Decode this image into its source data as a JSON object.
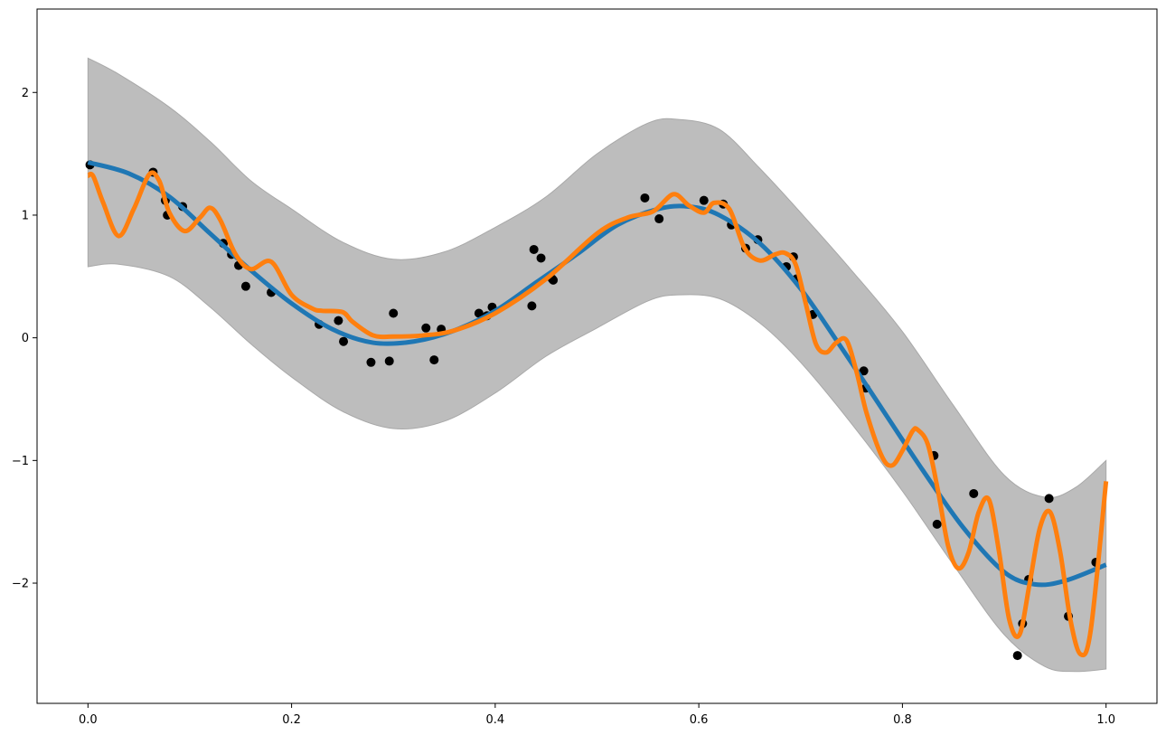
{
  "chart_data": {
    "type": "scatter",
    "title": "",
    "xlabel": "",
    "ylabel": "",
    "xlim": [
      -0.05,
      1.05
    ],
    "ylim": [
      -2.98,
      2.68
    ],
    "x_ticks": [
      0.0,
      0.2,
      0.4,
      0.6,
      0.8,
      1.0
    ],
    "x_tick_labels": [
      "0.0",
      "0.2",
      "0.4",
      "0.6",
      "0.8",
      "1.0"
    ],
    "y_ticks": [
      2,
      1,
      0,
      -1,
      -2
    ],
    "y_tick_labels": [
      "2",
      "1",
      "0",
      "−1",
      "−2"
    ],
    "grid": false,
    "colors": {
      "observations": "#000000",
      "mean": "#1f77b4",
      "wiggly": "#ff7f0e",
      "band_fill": "#bdbdbd",
      "band_edge": "#a8a8a8"
    },
    "band": {
      "x": [
        0.0,
        0.03,
        0.08,
        0.12,
        0.16,
        0.2,
        0.25,
        0.3,
        0.35,
        0.4,
        0.45,
        0.5,
        0.55,
        0.58,
        0.62,
        0.66,
        0.7,
        0.75,
        0.8,
        0.85,
        0.9,
        0.94,
        0.97,
        1.0
      ],
      "upper": [
        2.28,
        2.15,
        1.88,
        1.6,
        1.28,
        1.05,
        0.78,
        0.64,
        0.7,
        0.9,
        1.15,
        1.5,
        1.75,
        1.78,
        1.7,
        1.38,
        1.02,
        0.55,
        0.05,
        -0.55,
        -1.12,
        -1.3,
        -1.22,
        -1.0
      ],
      "lower": [
        0.58,
        0.6,
        0.5,
        0.25,
        -0.05,
        -0.32,
        -0.6,
        -0.74,
        -0.68,
        -0.45,
        -0.15,
        0.08,
        0.3,
        0.35,
        0.32,
        0.12,
        -0.2,
        -0.7,
        -1.25,
        -1.85,
        -2.42,
        -2.68,
        -2.72,
        -2.7
      ]
    },
    "series": [
      {
        "x": [
          0.0,
          0.04,
          0.08,
          0.12,
          0.16,
          0.2,
          0.24,
          0.28,
          0.32,
          0.36,
          0.4,
          0.44,
          0.48,
          0.52,
          0.56,
          0.59,
          0.62,
          0.66,
          0.7,
          0.74,
          0.78,
          0.82,
          0.86,
          0.9,
          0.93,
          0.96,
          1.0
        ],
        "y": [
          1.43,
          1.34,
          1.15,
          0.85,
          0.55,
          0.28,
          0.07,
          -0.04,
          -0.03,
          0.06,
          0.22,
          0.45,
          0.68,
          0.92,
          1.05,
          1.07,
          1.0,
          0.77,
          0.4,
          -0.08,
          -0.58,
          -1.08,
          -1.55,
          -1.91,
          -2.01,
          -1.98,
          -1.85
        ]
      },
      {
        "x": [
          0.0,
          0.005,
          0.015,
          0.03,
          0.045,
          0.06,
          0.07,
          0.08,
          0.095,
          0.11,
          0.12,
          0.13,
          0.145,
          0.16,
          0.18,
          0.2,
          0.22,
          0.23,
          0.25,
          0.26,
          0.28,
          0.3,
          0.33,
          0.36,
          0.4,
          0.45,
          0.5,
          0.53,
          0.555,
          0.575,
          0.59,
          0.605,
          0.615,
          0.63,
          0.645,
          0.66,
          0.675,
          0.685,
          0.695,
          0.705,
          0.715,
          0.725,
          0.735,
          0.745,
          0.755,
          0.765,
          0.78,
          0.79,
          0.8,
          0.81,
          0.815,
          0.825,
          0.835,
          0.845,
          0.855,
          0.865,
          0.875,
          0.885,
          0.895,
          0.905,
          0.915,
          0.925,
          0.935,
          0.945,
          0.955,
          0.965,
          0.975,
          0.985,
          1.0
        ],
        "y": [
          1.32,
          1.32,
          1.1,
          0.83,
          1.05,
          1.33,
          1.28,
          1.02,
          0.87,
          0.98,
          1.06,
          0.96,
          0.68,
          0.56,
          0.62,
          0.35,
          0.24,
          0.22,
          0.21,
          0.13,
          0.02,
          0.01,
          0.02,
          0.06,
          0.2,
          0.48,
          0.85,
          0.98,
          1.03,
          1.17,
          1.08,
          1.02,
          1.1,
          1.05,
          0.73,
          0.63,
          0.68,
          0.69,
          0.6,
          0.28,
          -0.05,
          -0.12,
          -0.04,
          -0.02,
          -0.28,
          -0.62,
          -0.97,
          -1.04,
          -0.92,
          -0.76,
          -0.75,
          -0.87,
          -1.25,
          -1.7,
          -1.88,
          -1.75,
          -1.42,
          -1.32,
          -1.75,
          -2.3,
          -2.42,
          -2.0,
          -1.55,
          -1.42,
          -1.75,
          -2.3,
          -2.58,
          -2.38,
          -1.17
        ]
      }
    ],
    "points": {
      "x": [
        0.002,
        0.064,
        0.076,
        0.078,
        0.093,
        0.133,
        0.141,
        0.148,
        0.155,
        0.18,
        0.227,
        0.246,
        0.251,
        0.278,
        0.296,
        0.3,
        0.332,
        0.34,
        0.347,
        0.384,
        0.392,
        0.397,
        0.436,
        0.438,
        0.445,
        0.456,
        0.457,
        0.547,
        0.561,
        0.605,
        0.624,
        0.632,
        0.646,
        0.658,
        0.686,
        0.693,
        0.696,
        0.712,
        0.762,
        0.764,
        0.831,
        0.834,
        0.87,
        0.913,
        0.918,
        0.924,
        0.944,
        0.963,
        0.99
      ],
      "y": [
        1.41,
        1.35,
        1.12,
        1.0,
        1.07,
        0.77,
        0.68,
        0.59,
        0.42,
        0.37,
        0.11,
        0.14,
        -0.03,
        -0.2,
        -0.19,
        0.2,
        0.08,
        -0.18,
        0.07,
        0.2,
        0.18,
        0.25,
        0.26,
        0.72,
        0.65,
        0.48,
        0.47,
        1.14,
        0.97,
        1.12,
        1.09,
        0.92,
        0.73,
        0.8,
        0.58,
        0.66,
        0.48,
        0.19,
        -0.27,
        -0.41,
        -0.96,
        -1.52,
        -1.27,
        -2.59,
        -2.33,
        -1.97,
        -1.31,
        -2.27,
        -1.83
      ]
    }
  }
}
